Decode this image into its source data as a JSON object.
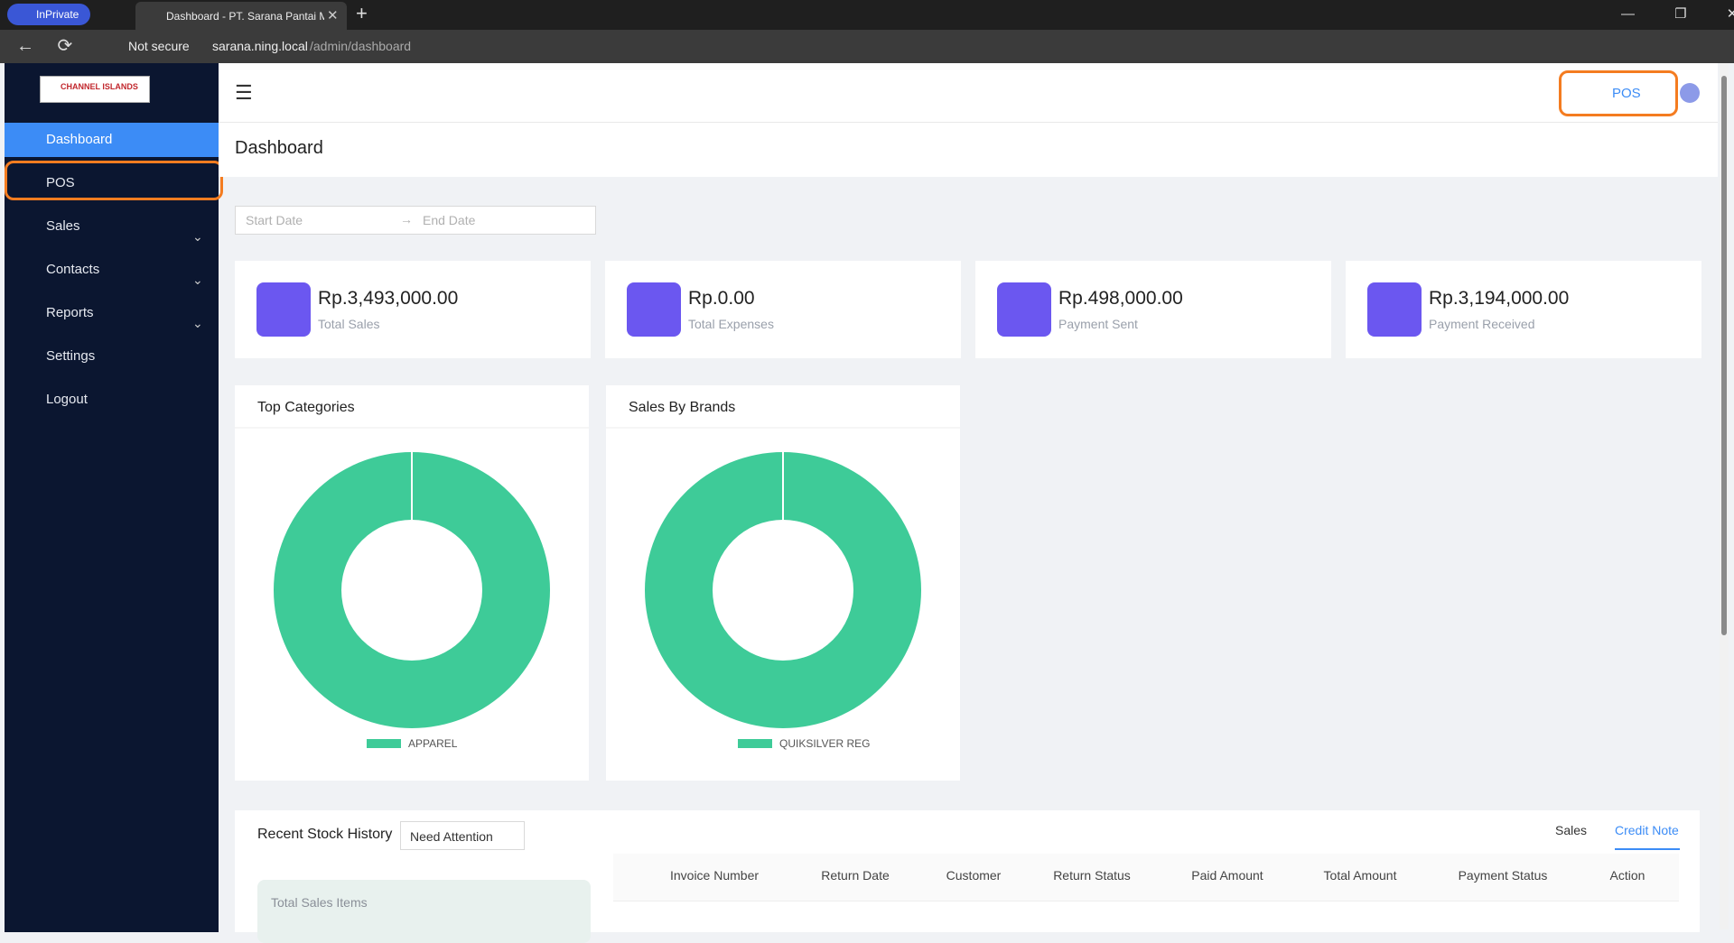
{
  "browser": {
    "tab_badge": "InPrivate",
    "tab_title": "Dashboard - PT. Sarana Pantai M",
    "security": "Not secure",
    "url_host": "sarana.ning.local",
    "url_path": "/admin/dashboard"
  },
  "logo": "CHANNEL ISLANDS",
  "sidebar": {
    "items": [
      "Dashboard",
      "POS",
      "Sales",
      "Contacts",
      "Reports",
      "Settings",
      "Logout"
    ]
  },
  "header": {
    "pos_button": "POS",
    "page_title": "Dashboard"
  },
  "date_range": {
    "start": "Start Date",
    "end": "End Date"
  },
  "stats": [
    {
      "value": "Rp.3,493,000.00",
      "label": "Total Sales"
    },
    {
      "value": "Rp.0.00",
      "label": "Total Expenses"
    },
    {
      "value": "Rp.498,000.00",
      "label": "Payment Sent"
    },
    {
      "value": "Rp.3,194,000.00",
      "label": "Payment Received"
    }
  ],
  "chart_data": [
    {
      "type": "pie",
      "title": "Top Categories",
      "categories": [
        "APPAREL"
      ],
      "values": [
        100
      ],
      "colors": [
        "#3ecb98"
      ]
    },
    {
      "type": "pie",
      "title": "Sales By Brands",
      "categories": [
        "QUIKSILVER REG"
      ],
      "values": [
        100
      ],
      "colors": [
        "#3ecb98"
      ]
    }
  ],
  "stock_history": {
    "title": "Recent Stock History",
    "filter": "Need Attention",
    "tabs": [
      "Sales",
      "Credit Note"
    ],
    "summary_label": "Total Sales Items",
    "columns": [
      "Invoice Number",
      "Return Date",
      "Customer",
      "Return Status",
      "Paid Amount",
      "Total Amount",
      "Payment Status",
      "Action"
    ]
  }
}
